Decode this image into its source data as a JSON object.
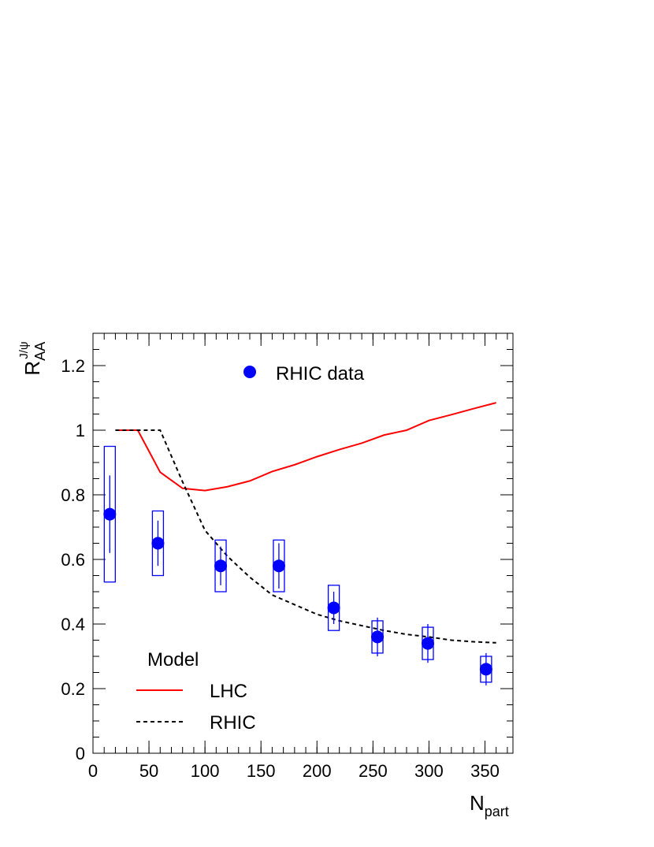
{
  "chart_data": {
    "type": "errorbar",
    "xlabel": {
      "main": "N",
      "sub": "part"
    },
    "ylabel": {
      "main": "R",
      "sub": "AA",
      "sup": "J/ψ"
    },
    "xlim": [
      0,
      375
    ],
    "ylim": [
      0,
      1.3
    ],
    "xticks": [
      0,
      50,
      100,
      150,
      200,
      250,
      300,
      350
    ],
    "yticks": [
      0,
      0.2,
      0.4,
      0.6,
      0.8,
      1,
      1.2
    ],
    "series": [
      {
        "name": "RHIC data",
        "color": "#0000ff",
        "x": [
          15,
          58,
          114,
          166,
          215,
          254,
          299,
          351
        ],
        "values": [
          0.74,
          0.65,
          0.58,
          0.58,
          0.45,
          0.36,
          0.34,
          0.26
        ],
        "errors": [
          0.12,
          0.07,
          0.06,
          0.07,
          0.05,
          0.06,
          0.06,
          0.05
        ],
        "sys_errors": [
          0.21,
          0.1,
          0.08,
          0.08,
          0.07,
          0.05,
          0.05,
          0.04
        ]
      }
    ],
    "model_title": "Model",
    "models": [
      {
        "name": "LHC",
        "color": "#ff0000",
        "style": "solid",
        "x": [
          20,
          40,
          60,
          80,
          100,
          120,
          140,
          160,
          180,
          200,
          220,
          240,
          260,
          280,
          300,
          320,
          340,
          360
        ],
        "values": [
          1.0,
          1.0,
          0.87,
          0.82,
          0.813,
          0.825,
          0.843,
          0.872,
          0.893,
          0.918,
          0.94,
          0.96,
          0.985,
          1.0,
          1.03,
          1.048,
          1.067,
          1.085
        ]
      },
      {
        "name": "RHIC",
        "color": "#000000",
        "style": "dashed",
        "x": [
          20,
          40,
          60,
          80,
          100,
          120,
          140,
          160,
          180,
          200,
          220,
          240,
          260,
          280,
          300,
          320,
          340,
          360
        ],
        "values": [
          1.0,
          1.0,
          1.0,
          0.84,
          0.69,
          0.61,
          0.545,
          0.49,
          0.46,
          0.43,
          0.41,
          0.395,
          0.38,
          0.368,
          0.36,
          0.35,
          0.345,
          0.342
        ]
      }
    ]
  }
}
